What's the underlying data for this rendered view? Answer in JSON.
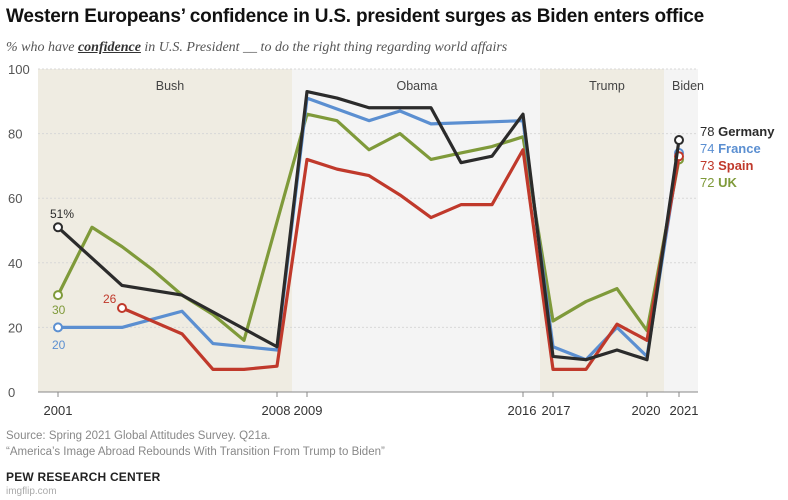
{
  "title": "Western Europeans’ confidence in U.S. president surges as Biden enters office",
  "subtitle": {
    "prefix": "% who have ",
    "emphasis": "confidence",
    "suffix": " in U.S. President __ to do the right thing regarding world affairs"
  },
  "source": "Source: Spring 2021 Global Attitudes Survey. Q21a.",
  "report": "“America’s Image Abroad Rebounds With Transition From Trump to Biden”",
  "organization": "PEW RESEARCH CENTER",
  "watermark": "imgflip.com",
  "chart_data": {
    "type": "line",
    "ylim": [
      0,
      100
    ],
    "yticks": [
      "0",
      "20",
      "40",
      "60",
      "80",
      "100"
    ],
    "xticks": [
      "2001",
      "2008",
      "2009",
      "2016",
      "2017",
      "2020",
      "2021"
    ],
    "eras": [
      {
        "label": "Bush",
        "from": 2001,
        "to": 2008
      },
      {
        "label": "Obama",
        "from": 2009,
        "to": 2016
      },
      {
        "label": "Trump",
        "from": 2017,
        "to": 2020
      },
      {
        "label": "Biden",
        "from": 2021,
        "to": 2021
      }
    ],
    "series": [
      {
        "name": "UK",
        "color": "#7f9a3a",
        "points": [
          [
            2001,
            30
          ],
          [
            2002,
            51
          ],
          [
            2003,
            45
          ],
          [
            2004,
            38
          ],
          [
            2005,
            30
          ],
          [
            2006,
            24
          ],
          [
            2007,
            16
          ],
          [
            2009,
            86
          ],
          [
            2010,
            84
          ],
          [
            2011,
            75
          ],
          [
            2012,
            80
          ],
          [
            2013,
            72
          ],
          [
            2014,
            74
          ],
          [
            2015,
            76
          ],
          [
            2016,
            79
          ],
          [
            2017,
            22
          ],
          [
            2018,
            28
          ],
          [
            2019,
            32
          ],
          [
            2020,
            19
          ],
          [
            2021,
            72
          ]
        ],
        "start_label": "30",
        "end_label": "72 UK",
        "end_value": 72
      },
      {
        "name": "France",
        "color": "#5b8fd1",
        "points": [
          [
            2001,
            20
          ],
          [
            2003,
            20
          ],
          [
            2005,
            25
          ],
          [
            2006,
            15
          ],
          [
            2008,
            13
          ],
          [
            2009,
            91
          ],
          [
            2011,
            84
          ],
          [
            2012,
            87
          ],
          [
            2013,
            83
          ],
          [
            2016,
            84
          ],
          [
            2017,
            14
          ],
          [
            2018,
            10
          ],
          [
            2019,
            20
          ],
          [
            2020,
            11
          ],
          [
            2021,
            74
          ]
        ],
        "start_label": "20",
        "end_label": "74 France",
        "end_value": 74
      },
      {
        "name": "Spain",
        "color": "#c0392b",
        "points": [
          [
            2003,
            26
          ],
          [
            2004,
            22
          ],
          [
            2005,
            18
          ],
          [
            2006,
            7
          ],
          [
            2007,
            7
          ],
          [
            2008,
            8
          ],
          [
            2009,
            72
          ],
          [
            2010,
            69
          ],
          [
            2011,
            67
          ],
          [
            2012,
            61
          ],
          [
            2013,
            54
          ],
          [
            2014,
            58
          ],
          [
            2015,
            58
          ],
          [
            2016,
            75
          ],
          [
            2017,
            7
          ],
          [
            2018,
            7
          ],
          [
            2019,
            21
          ],
          [
            2020,
            16
          ],
          [
            2021,
            73
          ]
        ],
        "start_label": "26",
        "end_label": "73 Spain",
        "end_value": 73
      },
      {
        "name": "Germany",
        "color": "#2b2b2b",
        "points": [
          [
            2001,
            51
          ],
          [
            2003,
            33
          ],
          [
            2005,
            30
          ],
          [
            2008,
            14
          ],
          [
            2009,
            93
          ],
          [
            2010,
            91
          ],
          [
            2011,
            88
          ],
          [
            2013,
            88
          ],
          [
            2014,
            71
          ],
          [
            2015,
            73
          ],
          [
            2016,
            86
          ],
          [
            2017,
            11
          ],
          [
            2018,
            10
          ],
          [
            2019,
            13
          ],
          [
            2020,
            10
          ],
          [
            2021,
            78
          ]
        ],
        "start_label": "51%",
        "end_label": "78 Germany",
        "end_value": 78
      }
    ]
  }
}
